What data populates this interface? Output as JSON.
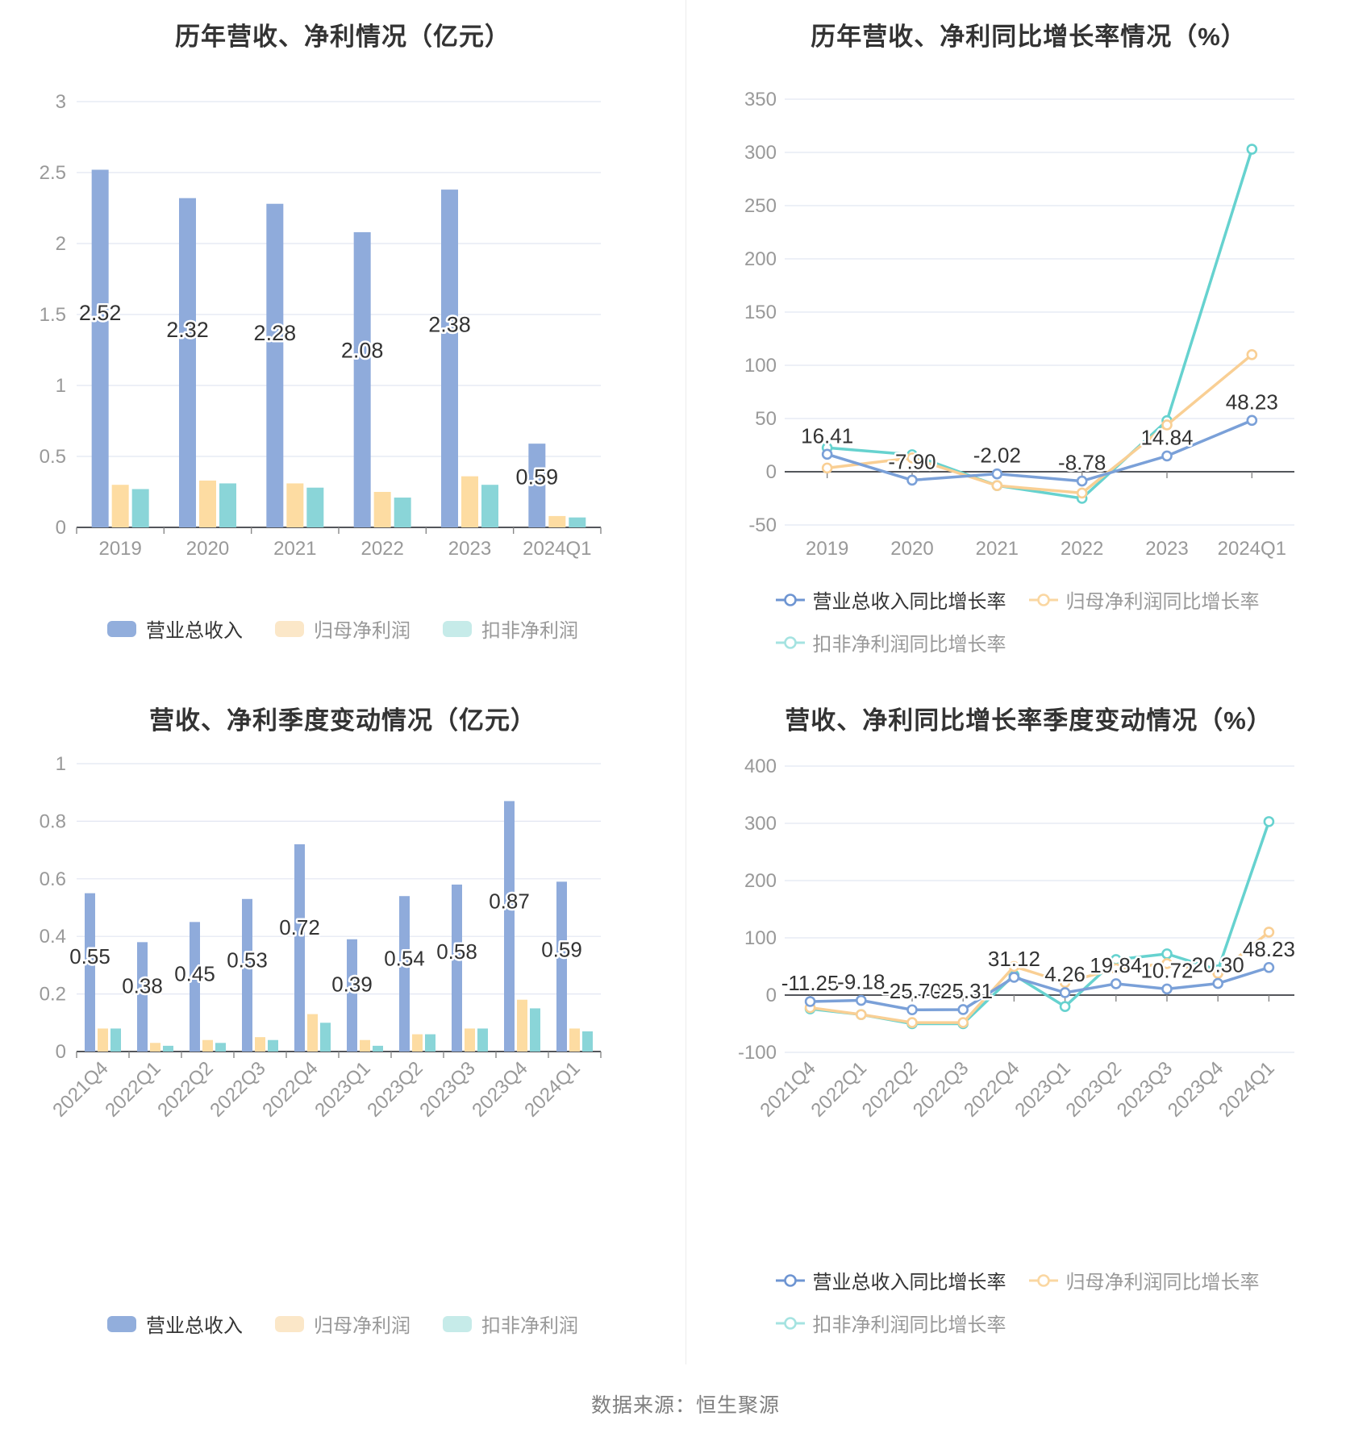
{
  "page": {
    "footer": "数据来源：恒生聚源"
  },
  "colors": {
    "bar": {
      "revenue": "#8FABDB",
      "net_profit": "#FDDCA2",
      "non_gaap": "#8AD5D8"
    },
    "line": {
      "revenue": "#7AA0D8",
      "net_profit": "#F9CF94",
      "non_gaap": "#66D2CF"
    },
    "grid": "#E2E6F2",
    "axis": "#54565B",
    "tick": "#888888",
    "tick_label": "#999999",
    "title": "#333333",
    "data_label": "#333333",
    "divider": "#ECECEC",
    "footer": "#7F7F7F"
  },
  "legends": {
    "bar": [
      {
        "key": "revenue",
        "label": "营业总收入",
        "swatch": "#92AEDC",
        "text": "#333333"
      },
      {
        "key": "net-profit",
        "label": "归母净利润",
        "swatch": "#FBE7C8",
        "text": "#999999"
      },
      {
        "key": "non-gaap-net-profit",
        "label": "扣非净利润",
        "swatch": "#C6EBE9",
        "text": "#999999"
      }
    ],
    "line_rows": [
      [
        {
          "key": "revenue-growth",
          "label": "营业总收入同比增长率",
          "marker": "#6E95D2",
          "text": "#333333"
        },
        {
          "key": "net-profit-growth",
          "label": "归母净利润同比增长率",
          "marker": "#FAD7A2",
          "text": "#999999"
        }
      ],
      [
        {
          "key": "non-gaap-net-profit-growth",
          "label": "扣非净利润同比增长率",
          "marker": "#A5E3E1",
          "text": "#999999"
        }
      ]
    ]
  },
  "chart_data": [
    {
      "id": "annual-bar",
      "type": "bar",
      "title": "历年营收、净利情况（亿元）",
      "xlabel": "",
      "ylabel": "",
      "grid": true,
      "legend_position": "bottom",
      "categories": [
        "2019",
        "2020",
        "2021",
        "2022",
        "2023",
        "2024Q1"
      ],
      "series": [
        {
          "key": "revenue",
          "name": "营业总收入",
          "values": [
            2.52,
            2.32,
            2.28,
            2.08,
            2.38,
            0.59
          ]
        },
        {
          "key": "net_profit",
          "name": "归母净利润",
          "values": [
            0.3,
            0.33,
            0.31,
            0.25,
            0.36,
            0.08
          ]
        },
        {
          "key": "non_gaap",
          "name": "扣非净利润",
          "values": [
            0.27,
            0.31,
            0.28,
            0.21,
            0.3,
            0.07
          ]
        }
      ],
      "labels": [
        "2.52",
        "2.32",
        "2.28",
        "2.08",
        "2.38",
        "0.59"
      ],
      "ylim": [
        0,
        3
      ],
      "yticks": [
        0,
        0.5,
        1,
        1.5,
        2,
        2.5,
        3
      ],
      "ytick_labels": [
        "0",
        "0.5",
        "1",
        "1.5",
        "2",
        "2.5",
        "3"
      ]
    },
    {
      "id": "annual-growth",
      "type": "line",
      "title": "历年营收、净利同比增长率情况（%）",
      "xlabel": "",
      "ylabel": "",
      "grid": true,
      "legend_position": "bottom",
      "categories": [
        "2019",
        "2020",
        "2021",
        "2022",
        "2023",
        "2024Q1"
      ],
      "series": [
        {
          "key": "revenue",
          "name": "营业总收入同比增长率",
          "values": [
            16.41,
            -7.9,
            -2.02,
            -8.78,
            14.84,
            48.23
          ]
        },
        {
          "key": "net_profit",
          "name": "归母净利润同比增长率",
          "values": [
            3.5,
            13,
            -13,
            -20,
            44,
            110
          ]
        },
        {
          "key": "non_gaap",
          "name": "扣非净利润同比增长率",
          "values": [
            22.5,
            16,
            -13,
            -25,
            48,
            303
          ]
        }
      ],
      "labels": [
        "16.41",
        "-7.90",
        "-2.02",
        "-8.78",
        "14.84",
        "48.23"
      ],
      "ylim": [
        -50,
        350
      ],
      "yticks": [
        -50,
        0,
        50,
        100,
        150,
        200,
        250,
        300,
        350
      ],
      "ytick_labels": [
        "-50",
        "0",
        "50",
        "100",
        "150",
        "200",
        "250",
        "300",
        "350"
      ]
    },
    {
      "id": "quarterly-bar",
      "type": "bar",
      "title": "营收、净利季度变动情况（亿元）",
      "xlabel": "",
      "ylabel": "",
      "grid": true,
      "legend_position": "bottom",
      "categories": [
        "2021Q4",
        "2022Q1",
        "2022Q2",
        "2022Q3",
        "2022Q4",
        "2023Q1",
        "2023Q2",
        "2023Q3",
        "2023Q4",
        "2024Q1"
      ],
      "series": [
        {
          "key": "revenue",
          "name": "营业总收入",
          "values": [
            0.55,
            0.38,
            0.45,
            0.53,
            0.72,
            0.39,
            0.54,
            0.58,
            0.87,
            0.59
          ]
        },
        {
          "key": "net_profit",
          "name": "归母净利润",
          "values": [
            0.08,
            0.03,
            0.04,
            0.05,
            0.13,
            0.04,
            0.06,
            0.08,
            0.18,
            0.08
          ]
        },
        {
          "key": "non_gaap",
          "name": "扣非净利润",
          "values": [
            0.08,
            0.02,
            0.03,
            0.04,
            0.1,
            0.02,
            0.06,
            0.08,
            0.15,
            0.07
          ]
        }
      ],
      "labels": [
        "0.55",
        "0.38",
        "0.45",
        "0.53",
        "0.72",
        "0.39",
        "0.54",
        "0.58",
        "0.87",
        "0.59"
      ],
      "ylim": [
        0,
        1
      ],
      "yticks": [
        0,
        0.2,
        0.4,
        0.6,
        0.8,
        1
      ],
      "ytick_labels": [
        "0",
        "0.2",
        "0.4",
        "0.6",
        "0.8",
        "1"
      ]
    },
    {
      "id": "quarterly-growth",
      "type": "line",
      "title": "营收、净利同比增长率季度变动情况（%）",
      "xlabel": "",
      "ylabel": "",
      "grid": true,
      "legend_position": "bottom",
      "categories": [
        "2021Q4",
        "2022Q1",
        "2022Q2",
        "2022Q3",
        "2022Q4",
        "2023Q1",
        "2023Q2",
        "2023Q3",
        "2023Q4",
        "2024Q1"
      ],
      "series": [
        {
          "key": "revenue",
          "name": "营业总收入同比增长率",
          "values": [
            -11.25,
            -9.18,
            -25.7,
            -25.31,
            31.12,
            4.26,
            19.84,
            10.72,
            20.3,
            48.23
          ]
        },
        {
          "key": "net_profit",
          "name": "归母净利润同比增长率",
          "values": [
            -22,
            -34,
            -48,
            -48,
            50,
            22,
            46,
            55,
            38,
            110
          ]
        },
        {
          "key": "non_gaap",
          "name": "扣非净利润同比增长率",
          "values": [
            -24,
            -34,
            -50,
            -50,
            35,
            -20,
            62,
            72,
            44,
            303
          ]
        }
      ],
      "labels": [
        "-11.25",
        "-9.18",
        "-25.70",
        "-25.31",
        "31.12",
        "4.26",
        "19.84",
        "10.72",
        "20.30",
        "48.23"
      ],
      "ylim": [
        -100,
        400
      ],
      "yticks": [
        -100,
        0,
        100,
        200,
        300,
        400
      ],
      "ytick_labels": [
        "-100",
        "0",
        "100",
        "200",
        "300",
        "400"
      ]
    }
  ]
}
